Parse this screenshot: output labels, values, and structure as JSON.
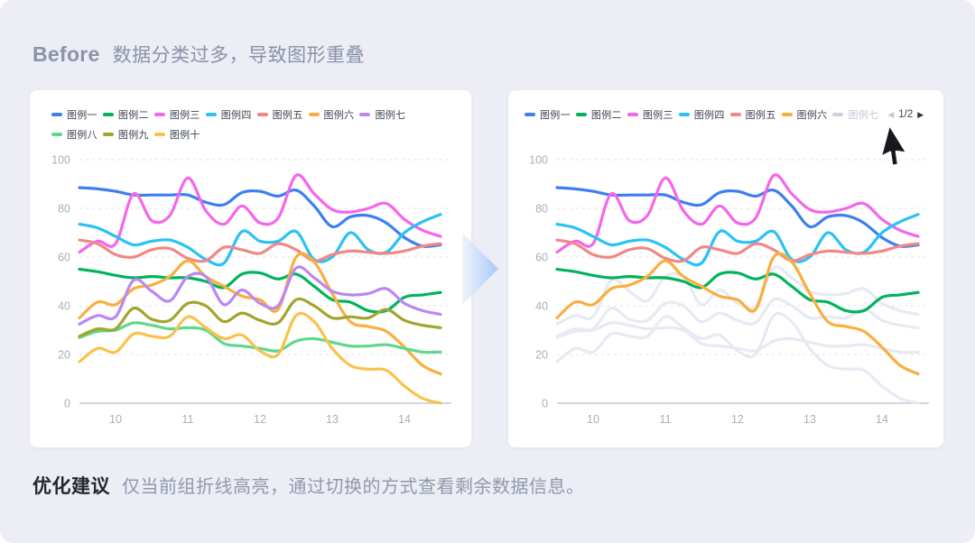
{
  "header": {
    "label_en": "Before",
    "description": "数据分类过多，导致图形重叠"
  },
  "footer": {
    "label": "优化建议",
    "description": "仅当前组折线高亮，通过切换的方式查看剩余数据信息。"
  },
  "colors": {
    "background": "#ECEDF5",
    "card": "#FFFFFF",
    "title_text": "#8A93A8",
    "footer_label": "#23272F",
    "footer_text": "#9099AC",
    "axis_text": "#A8AEBB",
    "grid_line": "#DFE2EC",
    "axis_line": "#C6C9D3",
    "muted_line": "#E7EAF3",
    "arrow_gradient_start": "#EDF1FB",
    "arrow_gradient_mid": "#C9DCF9",
    "arrow_gradient_end": "#A6C7F7"
  },
  "chart_data": {
    "type": "line",
    "x_range": [
      9.5,
      14.5
    ],
    "x_step": 0.25,
    "xticks": [
      10,
      11,
      12,
      13,
      14
    ],
    "yticks": [
      0,
      20,
      40,
      60,
      80,
      100
    ],
    "ylim": [
      0,
      100
    ],
    "grid": "horizontal-dashed",
    "legend_position": "top",
    "series": [
      {
        "name": "图例一",
        "color": "#3D7FF0",
        "values": [
          88.5,
          88,
          87,
          85.5,
          85.5,
          85.5,
          85.5,
          82.5,
          81.5,
          86.5,
          87,
          85,
          87.5,
          81,
          72.5,
          76.5,
          77,
          74,
          68,
          64.5,
          65
        ]
      },
      {
        "name": "图例二",
        "color": "#00B35C",
        "values": [
          55,
          54,
          52.5,
          51.5,
          52,
          51.5,
          51.5,
          50,
          47.5,
          53,
          53.5,
          51,
          53,
          48,
          42.5,
          41.5,
          38,
          38,
          43.5,
          44.5,
          45.5
        ]
      },
      {
        "name": "图例三",
        "color": "#F466EC",
        "values": [
          62,
          66.5,
          65.5,
          86,
          75,
          77,
          92.5,
          79,
          73.5,
          81,
          74,
          76,
          93.5,
          86,
          79.5,
          78.5,
          80,
          82,
          75.5,
          71,
          68.5
        ]
      },
      {
        "name": "图例四",
        "color": "#29C2F5",
        "values": [
          73.5,
          72,
          68.5,
          65,
          66.5,
          67,
          64,
          59,
          57.5,
          70.5,
          66.5,
          66.5,
          70.5,
          59,
          60,
          70,
          63,
          62,
          70,
          74.5,
          77.5
        ]
      },
      {
        "name": "图例五",
        "color": "#F28785",
        "values": [
          67,
          65.5,
          61,
          60,
          63,
          63.5,
          59.5,
          58.5,
          64,
          63,
          61.5,
          65.5,
          63,
          58.5,
          61,
          62.5,
          62,
          61.5,
          62.5,
          64.5,
          65.5
        ]
      },
      {
        "name": "图例六",
        "color": "#F9AF3D",
        "values": [
          35,
          41.5,
          40.5,
          47,
          48.5,
          52,
          58.5,
          52,
          48,
          44,
          42.5,
          38.5,
          60,
          58,
          45,
          33.5,
          31.5,
          29.5,
          23,
          15.5,
          12
        ]
      },
      {
        "name": "图例七",
        "color": "#BC87F2",
        "values": [
          32.5,
          36,
          35.5,
          50.5,
          46,
          42,
          52,
          52,
          40.5,
          46.5,
          41,
          40,
          55.5,
          51.5,
          46,
          44.5,
          45,
          47,
          41,
          38,
          36.5
        ]
      },
      {
        "name": "图例八",
        "color": "#5FD78C",
        "values": [
          27,
          29.5,
          30,
          33,
          32,
          30.5,
          31,
          30,
          24.5,
          23.5,
          22.5,
          21.5,
          25.5,
          26.5,
          25,
          23.5,
          23.5,
          24,
          22.5,
          21,
          21
        ]
      },
      {
        "name": "图例九",
        "color": "#A1A52B",
        "values": [
          27.5,
          30.5,
          30.5,
          39,
          34.5,
          34,
          41,
          40,
          33.5,
          37,
          34,
          33,
          42.5,
          40,
          35,
          35.5,
          35,
          38.5,
          34,
          32,
          31
        ]
      },
      {
        "name": "图例十",
        "color": "#FAC24C",
        "values": [
          17,
          22.5,
          21,
          28.5,
          27.5,
          27.5,
          35.5,
          31,
          26.5,
          28,
          21.5,
          20,
          36,
          33.5,
          22.5,
          15.5,
          14,
          13.5,
          7,
          2,
          0
        ]
      }
    ],
    "panels": [
      {
        "id": "before",
        "legend_count": 10,
        "highlight": [
          0,
          1,
          2,
          3,
          4,
          5,
          6,
          7,
          8,
          9
        ],
        "muted": []
      },
      {
        "id": "after",
        "legend_count": 7,
        "highlight": [
          0,
          1,
          2,
          3,
          4,
          5
        ],
        "muted": [
          6,
          7,
          8,
          9
        ],
        "muted_legend_index": 6,
        "pager": {
          "prev_icon": "◀",
          "label": "1/2",
          "next_icon": "▶",
          "prev_enabled": false,
          "next_enabled": true
        }
      }
    ]
  }
}
